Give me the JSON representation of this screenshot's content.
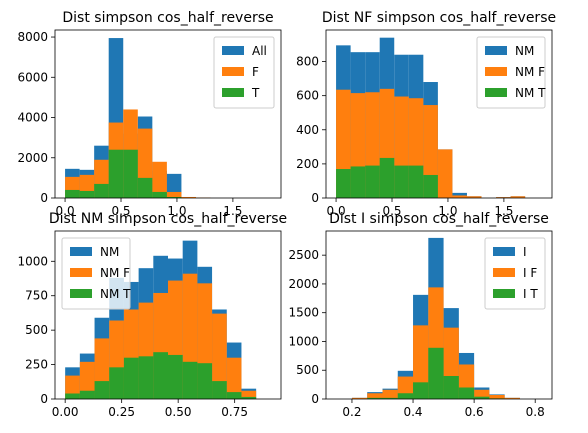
{
  "figure": {
    "colors": {
      "c0": "#1f77b4",
      "c1": "#ff7f0e",
      "c2": "#2ca02c",
      "axis": "#000000",
      "legend_border": "#cccccc"
    }
  },
  "chart_data": [
    {
      "type": "bar",
      "title": "Dist simpson cos_half_reverse",
      "xlim": [
        -0.09,
        1.93
      ],
      "ylim": [
        0,
        8350
      ],
      "xticks": [
        0.0,
        0.5,
        1.0,
        1.5
      ],
      "xtick_labels": [
        "0.0",
        "0.5",
        "1.0",
        "1.5"
      ],
      "yticks": [
        0,
        2000,
        4000,
        6000,
        8000
      ],
      "ytick_labels": [
        "0",
        "2000",
        "4000",
        "6000",
        "8000"
      ],
      "legend_placement": "top-right",
      "series": [
        {
          "name": "All",
          "color": "#1f77b4",
          "bins": [
            [
              0,
              0.13,
              1450
            ],
            [
              0.13,
              0.26,
              1400
            ],
            [
              0.26,
              0.39,
              2600
            ],
            [
              0.39,
              0.52,
              7950
            ],
            [
              0.52,
              0.65,
              3200
            ],
            [
              0.65,
              0.78,
              4050
            ],
            [
              0.78,
              0.91,
              1350
            ],
            [
              0.91,
              1.04,
              1200
            ],
            [
              1.04,
              1.17,
              50
            ],
            [
              1.17,
              1.3,
              10
            ],
            [
              1.3,
              1.43,
              0
            ],
            [
              1.43,
              1.56,
              0
            ],
            [
              1.56,
              1.69,
              0
            ],
            [
              1.69,
              1.82,
              0
            ]
          ]
        },
        {
          "name": "F",
          "color": "#ff7f0e",
          "bins": [
            [
              0,
              0.13,
              1050
            ],
            [
              0.13,
              0.26,
              1150
            ],
            [
              0.26,
              0.39,
              1900
            ],
            [
              0.39,
              0.52,
              3750
            ],
            [
              0.52,
              0.65,
              4400
            ],
            [
              0.65,
              0.78,
              3450
            ],
            [
              0.78,
              0.91,
              1800
            ],
            [
              0.91,
              1.04,
              300
            ],
            [
              1.04,
              1.17,
              50
            ],
            [
              1.17,
              1.3,
              20
            ],
            [
              1.3,
              1.43,
              0
            ],
            [
              1.43,
              1.56,
              0
            ],
            [
              1.56,
              1.69,
              0
            ],
            [
              1.69,
              1.82,
              0
            ]
          ]
        },
        {
          "name": "T",
          "color": "#2ca02c",
          "bins": [
            [
              0,
              0.13,
              400
            ],
            [
              0.13,
              0.26,
              350
            ],
            [
              0.26,
              0.39,
              700
            ],
            [
              0.39,
              0.52,
              2400
            ],
            [
              0.52,
              0.65,
              2400
            ],
            [
              0.65,
              0.78,
              1000
            ],
            [
              0.78,
              0.91,
              300
            ],
            [
              0.91,
              1.04,
              50
            ],
            [
              1.04,
              1.17,
              0
            ],
            [
              1.17,
              1.3,
              0
            ],
            [
              1.3,
              1.43,
              0
            ],
            [
              1.43,
              1.56,
              0
            ],
            [
              1.56,
              1.69,
              0
            ],
            [
              1.69,
              1.82,
              0
            ]
          ]
        }
      ]
    },
    {
      "type": "bar",
      "title": "Dist NF simpson cos_half_reverse",
      "xlim": [
        -0.09,
        1.93
      ],
      "ylim": [
        0,
        985
      ],
      "xticks": [
        0.0,
        0.5,
        1.0,
        1.5
      ],
      "xtick_labels": [
        "0.0",
        "0.5",
        "1.0",
        "1.5"
      ],
      "yticks": [
        0,
        200,
        400,
        600,
        800
      ],
      "ytick_labels": [
        "0",
        "200",
        "400",
        "600",
        "800"
      ],
      "legend_placement": "top-right",
      "series": [
        {
          "name": "NM",
          "color": "#1f77b4",
          "bins": [
            [
              0,
              0.13,
              895
            ],
            [
              0.13,
              0.26,
              855
            ],
            [
              0.26,
              0.39,
              855
            ],
            [
              0.39,
              0.52,
              940
            ],
            [
              0.52,
              0.65,
              840
            ],
            [
              0.65,
              0.78,
              840
            ],
            [
              0.78,
              0.91,
              680
            ],
            [
              0.91,
              1.04,
              285
            ],
            [
              1.04,
              1.17,
              30
            ],
            [
              1.17,
              1.3,
              10
            ],
            [
              1.3,
              1.43,
              0
            ],
            [
              1.43,
              1.56,
              5
            ],
            [
              1.56,
              1.69,
              10
            ],
            [
              1.69,
              1.82,
              0
            ]
          ]
        },
        {
          "name": "NM F",
          "color": "#ff7f0e",
          "bins": [
            [
              0,
              0.13,
              635
            ],
            [
              0.13,
              0.26,
              615
            ],
            [
              0.26,
              0.39,
              620
            ],
            [
              0.39,
              0.52,
              640
            ],
            [
              0.52,
              0.65,
              595
            ],
            [
              0.65,
              0.78,
              585
            ],
            [
              0.78,
              0.91,
              545
            ],
            [
              0.91,
              1.04,
              285
            ],
            [
              1.04,
              1.17,
              15
            ],
            [
              1.17,
              1.3,
              10
            ],
            [
              1.3,
              1.43,
              0
            ],
            [
              1.43,
              1.56,
              5
            ],
            [
              1.56,
              1.69,
              10
            ],
            [
              1.69,
              1.82,
              0
            ]
          ]
        },
        {
          "name": "NM T",
          "color": "#2ca02c",
          "bins": [
            [
              0,
              0.13,
              170
            ],
            [
              0.13,
              0.26,
              185
            ],
            [
              0.26,
              0.39,
              190
            ],
            [
              0.39,
              0.52,
              235
            ],
            [
              0.52,
              0.65,
              190
            ],
            [
              0.65,
              0.78,
              190
            ],
            [
              0.78,
              0.91,
              135
            ],
            [
              0.91,
              1.04,
              0
            ],
            [
              1.04,
              1.17,
              0
            ],
            [
              1.17,
              1.3,
              0
            ],
            [
              1.3,
              1.43,
              0
            ],
            [
              1.43,
              1.56,
              0
            ],
            [
              1.56,
              1.69,
              0
            ],
            [
              1.69,
              1.82,
              0
            ]
          ]
        }
      ]
    },
    {
      "type": "bar",
      "title": "Dist NM simpson cos_half_reverse",
      "xlim": [
        -0.045,
        0.955
      ],
      "ylim": [
        0,
        1220
      ],
      "xticks": [
        0.0,
        0.25,
        0.5,
        0.75
      ],
      "xtick_labels": [
        "0.00",
        "0.25",
        "0.50",
        "0.75"
      ],
      "yticks": [
        0,
        250,
        500,
        750,
        1000
      ],
      "ytick_labels": [
        "0",
        "250",
        "500",
        "750",
        "1000"
      ],
      "legend_placement": "top-left",
      "series": [
        {
          "name": "NM",
          "color": "#1f77b4",
          "bins": [
            [
              0,
              0.065,
              230
            ],
            [
              0.065,
              0.13,
              330
            ],
            [
              0.13,
              0.195,
              590
            ],
            [
              0.195,
              0.26,
              880
            ],
            [
              0.26,
              0.325,
              850
            ],
            [
              0.325,
              0.39,
              950
            ],
            [
              0.39,
              0.455,
              1040
            ],
            [
              0.455,
              0.52,
              1020
            ],
            [
              0.52,
              0.585,
              1150
            ],
            [
              0.585,
              0.65,
              960
            ],
            [
              0.65,
              0.715,
              650
            ],
            [
              0.715,
              0.78,
              410
            ],
            [
              0.78,
              0.845,
              75
            ]
          ]
        },
        {
          "name": "NM F",
          "color": "#ff7f0e",
          "bins": [
            [
              0,
              0.065,
              170
            ],
            [
              0.065,
              0.13,
              270
            ],
            [
              0.13,
              0.195,
              440
            ],
            [
              0.195,
              0.26,
              570
            ],
            [
              0.26,
              0.325,
              650
            ],
            [
              0.325,
              0.39,
              700
            ],
            [
              0.39,
              0.455,
              770
            ],
            [
              0.455,
              0.52,
              860
            ],
            [
              0.52,
              0.585,
              910
            ],
            [
              0.585,
              0.65,
              840
            ],
            [
              0.65,
              0.715,
              620
            ],
            [
              0.715,
              0.78,
              300
            ],
            [
              0.78,
              0.845,
              60
            ]
          ]
        },
        {
          "name": "NM T",
          "color": "#2ca02c",
          "bins": [
            [
              0,
              0.065,
              40
            ],
            [
              0.065,
              0.13,
              60
            ],
            [
              0.13,
              0.195,
              130
            ],
            [
              0.195,
              0.26,
              230
            ],
            [
              0.26,
              0.325,
              300
            ],
            [
              0.325,
              0.39,
              310
            ],
            [
              0.39,
              0.455,
              340
            ],
            [
              0.455,
              0.52,
              320
            ],
            [
              0.52,
              0.585,
              270
            ],
            [
              0.585,
              0.65,
              260
            ],
            [
              0.65,
              0.715,
              130
            ],
            [
              0.715,
              0.78,
              50
            ],
            [
              0.78,
              0.845,
              15
            ]
          ]
        }
      ]
    },
    {
      "type": "bar",
      "title": "Dist I simpson cos_half_reverse",
      "xlim": [
        0.115,
        0.855
      ],
      "ylim": [
        0,
        2920
      ],
      "xticks": [
        0.2,
        0.4,
        0.6,
        0.8
      ],
      "xtick_labels": [
        "0.2",
        "0.4",
        "0.6",
        "0.8"
      ],
      "yticks": [
        0,
        500,
        1000,
        1500,
        2000,
        2500
      ],
      "ytick_labels": [
        "0",
        "500",
        "1000",
        "1500",
        "2000",
        "2500"
      ],
      "legend_placement": "top-right",
      "series": [
        {
          "name": "I",
          "color": "#1f77b4",
          "bins": [
            [
              0.2,
              0.25,
              20
            ],
            [
              0.25,
              0.3,
              120
            ],
            [
              0.3,
              0.35,
              180
            ],
            [
              0.35,
              0.4,
              490
            ],
            [
              0.4,
              0.45,
              1810
            ],
            [
              0.45,
              0.5,
              2800
            ],
            [
              0.5,
              0.55,
              1580
            ],
            [
              0.55,
              0.6,
              800
            ],
            [
              0.6,
              0.65,
              200
            ],
            [
              0.65,
              0.7,
              80
            ],
            [
              0.7,
              0.75,
              20
            ]
          ]
        },
        {
          "name": "I F",
          "color": "#ff7f0e",
          "bins": [
            [
              0.2,
              0.25,
              20
            ],
            [
              0.25,
              0.3,
              100
            ],
            [
              0.3,
              0.35,
              160
            ],
            [
              0.35,
              0.4,
              390
            ],
            [
              0.4,
              0.45,
              1280
            ],
            [
              0.45,
              0.5,
              1940
            ],
            [
              0.5,
              0.55,
              1240
            ],
            [
              0.55,
              0.6,
              600
            ],
            [
              0.6,
              0.65,
              160
            ],
            [
              0.65,
              0.7,
              70
            ],
            [
              0.7,
              0.75,
              20
            ]
          ]
        },
        {
          "name": "I T",
          "color": "#2ca02c",
          "bins": [
            [
              0.2,
              0.25,
              0
            ],
            [
              0.25,
              0.3,
              20
            ],
            [
              0.3,
              0.35,
              20
            ],
            [
              0.35,
              0.4,
              100
            ],
            [
              0.4,
              0.45,
              290
            ],
            [
              0.45,
              0.5,
              890
            ],
            [
              0.5,
              0.55,
              400
            ],
            [
              0.55,
              0.6,
              200
            ],
            [
              0.6,
              0.65,
              40
            ],
            [
              0.65,
              0.7,
              10
            ],
            [
              0.7,
              0.75,
              0
            ]
          ]
        }
      ]
    }
  ]
}
